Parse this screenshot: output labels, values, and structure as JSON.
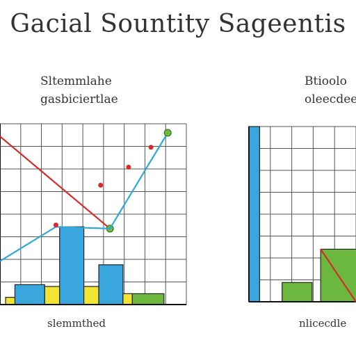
{
  "page": {
    "title": "Gacial Sountity Sageentis"
  },
  "chart_data": [
    {
      "type": "bar",
      "title_lines": [
        "Sltemmlahe",
        "gasbiciertlae"
      ],
      "footer": "slemmthed",
      "ylim": [
        0,
        10
      ],
      "xlim": [
        0,
        10
      ],
      "grid": true,
      "bars": [
        {
          "x": 0.3,
          "width": 0.6,
          "value": 0.4,
          "color": "#f2e432"
        },
        {
          "x": 0.8,
          "width": 1.6,
          "value": 1.1,
          "color": "#3aa6de"
        },
        {
          "x": 2.4,
          "width": 0.8,
          "value": 1.0,
          "color": "#f2e432"
        },
        {
          "x": 3.2,
          "width": 1.3,
          "value": 4.3,
          "color": "#3aa6de"
        },
        {
          "x": 4.5,
          "width": 0.8,
          "value": 1.0,
          "color": "#f2e432"
        },
        {
          "x": 5.3,
          "width": 1.3,
          "value": 2.2,
          "color": "#3aa6de"
        },
        {
          "x": 6.6,
          "width": 0.5,
          "value": 0.6,
          "color": "#f2e432"
        },
        {
          "x": 7.1,
          "width": 1.7,
          "value": 0.6,
          "color": "#6cb83f"
        }
      ],
      "series": [
        {
          "type": "line",
          "color": "#d62b2b",
          "points": [
            [
              0,
              9.3
            ],
            [
              5.9,
              4.2
            ]
          ],
          "end_marker_color": "#6cb83f"
        },
        {
          "type": "line",
          "color": "#2fa8d8",
          "points": [
            [
              0,
              2.4
            ],
            [
              3.0,
              4.3
            ],
            [
              5.9,
              4.2
            ],
            [
              9.0,
              9.5
            ]
          ],
          "end_marker_color": "#6cb83f"
        },
        {
          "type": "scatter",
          "color": "#d62b2b",
          "points": [
            [
              3.0,
              4.4
            ],
            [
              5.4,
              6.6
            ],
            [
              6.9,
              7.6
            ],
            [
              8.1,
              8.7
            ]
          ]
        }
      ]
    },
    {
      "type": "bar",
      "title_lines": [
        "Btioolo",
        "oleecdee"
      ],
      "footer": "nlicecdle",
      "ylim": [
        0,
        10
      ],
      "xlim": [
        0,
        10
      ],
      "grid": true,
      "bars": [
        {
          "x": 0.0,
          "width": 1.0,
          "value": 10.0,
          "color": "#3aa6de"
        },
        {
          "x": 3.1,
          "width": 2.8,
          "value": 1.1,
          "color": "#6cb83f"
        },
        {
          "x": 6.7,
          "width": 3.4,
          "value": 3.0,
          "color": "#6cb83f"
        }
      ],
      "series": [
        {
          "type": "line",
          "color": "#d62b2b",
          "points": [
            [
              6.7,
              3.0
            ],
            [
              10.0,
              0.0
            ]
          ]
        }
      ]
    }
  ]
}
